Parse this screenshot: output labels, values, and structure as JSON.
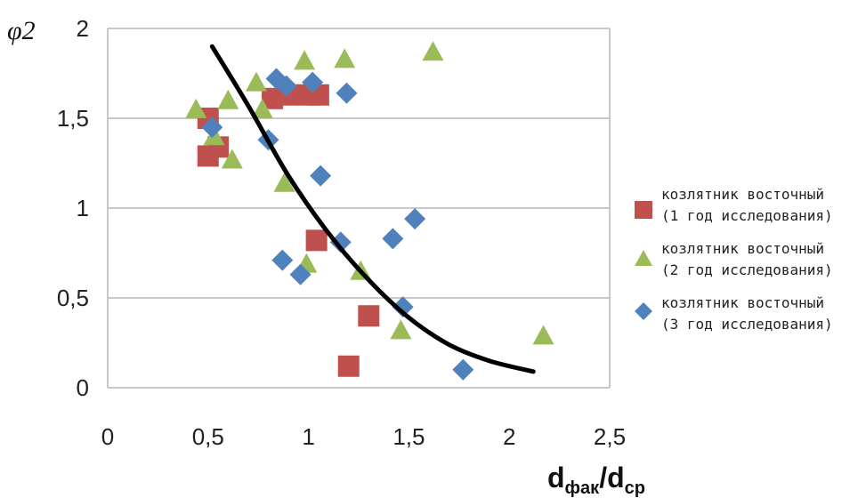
{
  "chart_data": {
    "type": "scatter",
    "ylabel": "φ2",
    "xlabel": {
      "main1": "d",
      "sub1": "фак",
      "sep": "/",
      "main2": "d",
      "sub2": "ср"
    },
    "xlim": [
      0,
      2.5
    ],
    "ylim": [
      0,
      2
    ],
    "x_ticks": [
      {
        "value": 0,
        "label": "0"
      },
      {
        "value": 0.5,
        "label": "0,5"
      },
      {
        "value": 1,
        "label": "1"
      },
      {
        "value": 1.5,
        "label": "1,5"
      },
      {
        "value": 2,
        "label": "2"
      },
      {
        "value": 2.5,
        "label": "2,5"
      }
    ],
    "y_ticks": [
      {
        "value": 0,
        "label": "0"
      },
      {
        "value": 0.5,
        "label": "0,5"
      },
      {
        "value": 1,
        "label": "1"
      },
      {
        "value": 1.5,
        "label": "1,5"
      },
      {
        "value": 2,
        "label": "2"
      }
    ],
    "grid": "horizontal",
    "legend_position": "right",
    "series": [
      {
        "name_line1": "козлятник восточный",
        "name_line2": "(1 год исследования)",
        "marker": "square",
        "color": "#c0504d",
        "points": [
          [
            0.5,
            1.5
          ],
          [
            0.5,
            1.29
          ],
          [
            0.55,
            1.34
          ],
          [
            0.82,
            1.61
          ],
          [
            0.9,
            1.63
          ],
          [
            1.0,
            1.63
          ],
          [
            1.05,
            1.63
          ],
          [
            1.04,
            0.82
          ],
          [
            1.3,
            0.4
          ],
          [
            1.2,
            0.12
          ]
        ]
      },
      {
        "name_line1": "козлятник восточный",
        "name_line2": "(2 год исследования)",
        "marker": "triangle",
        "color": "#9bbb59",
        "points": [
          [
            0.44,
            1.55
          ],
          [
            0.6,
            1.6
          ],
          [
            0.53,
            1.4
          ],
          [
            0.62,
            1.27
          ],
          [
            0.74,
            1.7
          ],
          [
            0.77,
            1.55
          ],
          [
            0.98,
            1.82
          ],
          [
            1.18,
            1.83
          ],
          [
            1.62,
            1.87
          ],
          [
            0.88,
            1.14
          ],
          [
            0.99,
            0.69
          ],
          [
            1.26,
            0.65
          ],
          [
            1.46,
            0.32
          ],
          [
            2.17,
            0.29
          ]
        ]
      },
      {
        "name_line1": "козлятник восточный",
        "name_line2": "(3 год исследования)",
        "marker": "diamond",
        "color": "#4f81bd",
        "points": [
          [
            0.52,
            1.45
          ],
          [
            0.8,
            1.38
          ],
          [
            0.84,
            1.72
          ],
          [
            0.89,
            1.68
          ],
          [
            1.02,
            1.7
          ],
          [
            1.19,
            1.64
          ],
          [
            1.06,
            1.18
          ],
          [
            1.16,
            0.81
          ],
          [
            1.42,
            0.83
          ],
          [
            1.53,
            0.94
          ],
          [
            0.87,
            0.71
          ],
          [
            0.96,
            0.63
          ],
          [
            1.47,
            0.45
          ],
          [
            1.77,
            0.1
          ]
        ]
      }
    ],
    "trendline": {
      "color": "#000000",
      "points": [
        [
          0.52,
          1.9
        ],
        [
          0.7,
          1.57
        ],
        [
          0.9,
          1.18
        ],
        [
          1.1,
          0.86
        ],
        [
          1.3,
          0.6
        ],
        [
          1.5,
          0.39
        ],
        [
          1.7,
          0.24
        ],
        [
          1.9,
          0.15
        ],
        [
          2.12,
          0.09
        ]
      ]
    }
  }
}
